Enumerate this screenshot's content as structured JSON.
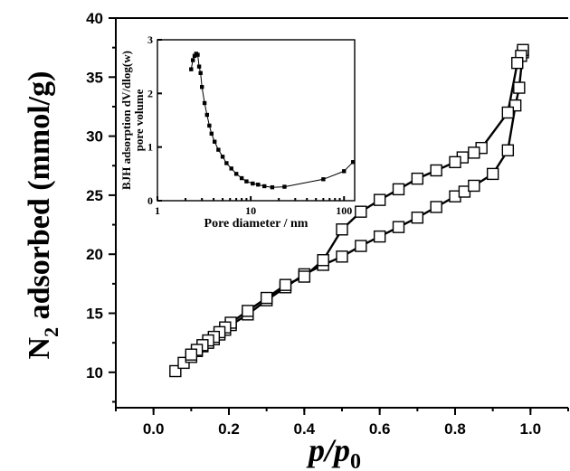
{
  "chart_data": [
    {
      "type": "line",
      "xlabel": "p/p0",
      "xlabel_main": "p/p",
      "xlabel_sub": "0",
      "ylabel": "N2 adsorbed (mmol/g)",
      "ylabel_main": "N",
      "ylabel_sub": "2",
      "ylabel_rest": " adsorbed (mmol/g)",
      "xlim": [
        -0.1,
        1.1
      ],
      "ylim": [
        7,
        40
      ],
      "xticks": [
        "0.0",
        "0.2",
        "0.4",
        "0.6",
        "0.8",
        "1.0"
      ],
      "yticks": [
        "10",
        "15",
        "20",
        "25",
        "30",
        "35",
        "40"
      ],
      "marker": "open-square",
      "series": [
        {
          "x": [
            0.058,
            0.08,
            0.1,
            0.115,
            0.13,
            0.145,
            0.16,
            0.175,
            0.19,
            0.205,
            0.25,
            0.3,
            0.35,
            0.4,
            0.45,
            0.5,
            0.55,
            0.6,
            0.65,
            0.7,
            0.75,
            0.8,
            0.825,
            0.85,
            0.9,
            0.94,
            0.96,
            0.97,
            0.98
          ],
          "y": [
            10.1,
            10.8,
            11.3,
            11.8,
            12.2,
            12.5,
            12.8,
            13.2,
            13.6,
            14.0,
            14.9,
            16.1,
            17.2,
            18.3,
            19.1,
            19.8,
            20.7,
            21.5,
            22.3,
            23.1,
            24.0,
            24.9,
            25.3,
            25.8,
            26.8,
            28.8,
            32.6,
            34.1,
            37.1
          ]
        },
        {
          "x": [
            0.98,
            0.975,
            0.965,
            0.94,
            0.87,
            0.85,
            0.82,
            0.8,
            0.75,
            0.7,
            0.65,
            0.6,
            0.55,
            0.5,
            0.45,
            0.4,
            0.35,
            0.3,
            0.25,
            0.205,
            0.19,
            0.175,
            0.16,
            0.145,
            0.13,
            0.115,
            0.1
          ],
          "y": [
            37.3,
            36.8,
            36.2,
            32.0,
            29.0,
            28.6,
            28.2,
            27.8,
            27.1,
            26.4,
            25.5,
            24.6,
            23.6,
            22.1,
            19.5,
            18.1,
            17.4,
            16.3,
            15.2,
            14.2,
            13.8,
            13.4,
            13.0,
            12.7,
            12.3,
            11.9,
            11.5
          ]
        }
      ]
    },
    {
      "type": "line",
      "xlabel": "Pore diameter / nm",
      "ylabel": "BJH adsorption dV/dlog(w)",
      "ylabel2": "pore volume",
      "x_scale": "log",
      "xlim": [
        1,
        130
      ],
      "ylim": [
        0,
        3
      ],
      "xticks": [
        "1",
        "10",
        "100"
      ],
      "yticks": [
        "0",
        "1",
        "2",
        "3"
      ],
      "marker": "filled-square",
      "series": [
        {
          "x": [
            2.3,
            2.4,
            2.5,
            2.6,
            2.7,
            2.8,
            2.9,
            3.0,
            3.2,
            3.4,
            3.6,
            3.8,
            4.1,
            4.5,
            5.0,
            5.5,
            6.2,
            7.0,
            8.0,
            9.0,
            10.5,
            12.0,
            14.0,
            17.0,
            23.0,
            60.0,
            100.0,
            125.0
          ],
          "y": [
            2.45,
            2.62,
            2.7,
            2.74,
            2.72,
            2.5,
            2.38,
            2.12,
            1.82,
            1.6,
            1.4,
            1.25,
            1.1,
            0.95,
            0.82,
            0.7,
            0.6,
            0.5,
            0.42,
            0.36,
            0.32,
            0.3,
            0.27,
            0.25,
            0.26,
            0.4,
            0.55,
            0.72
          ]
        }
      ]
    }
  ]
}
